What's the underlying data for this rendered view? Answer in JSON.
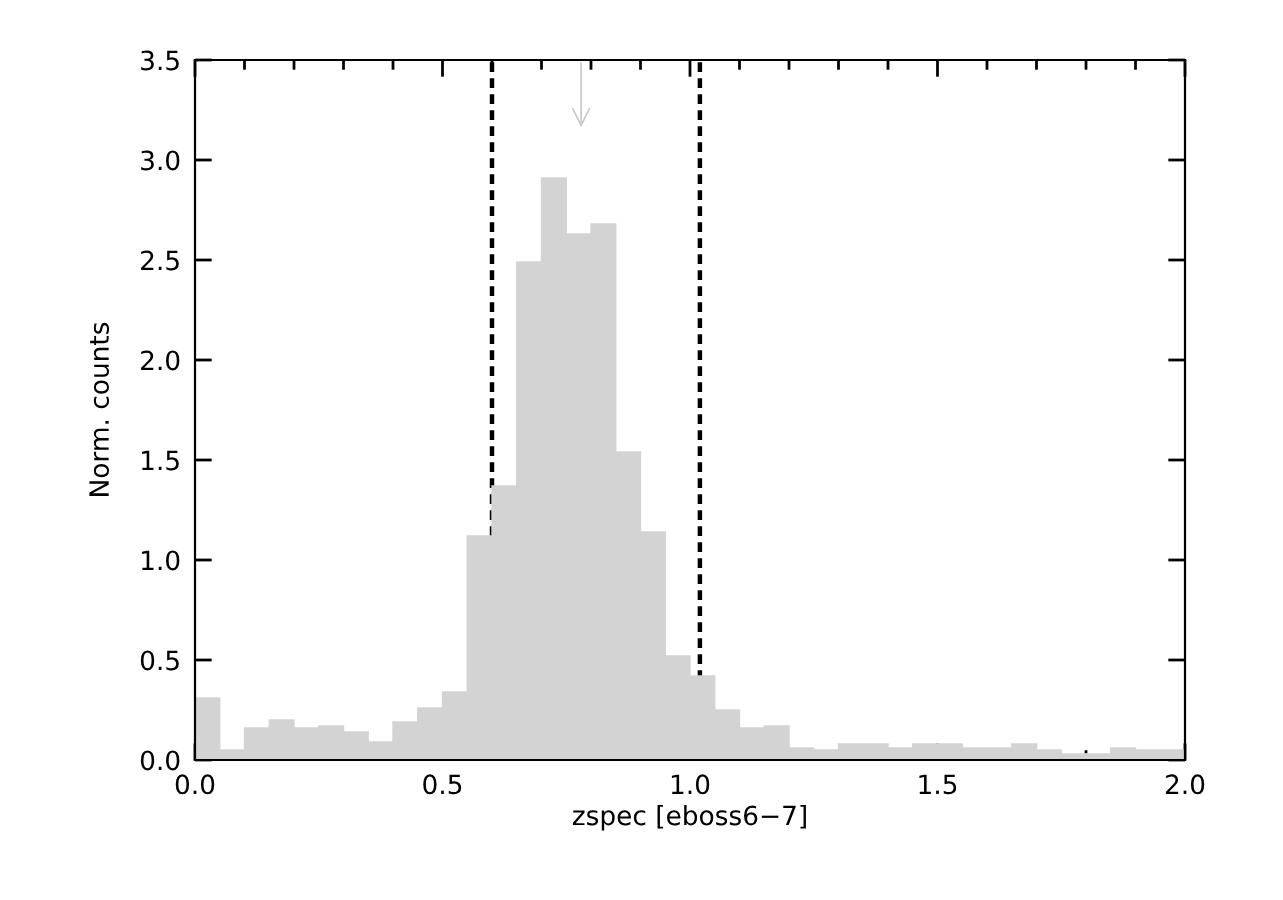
{
  "chart_data": {
    "type": "histogram",
    "xlabel": "zspec [eboss6−7]",
    "ylabel": "Norm. counts",
    "bins": [
      0,
      0.05,
      0.1,
      0.15,
      0.2,
      0.25,
      0.3,
      0.35,
      0.4,
      0.45,
      0.5,
      0.55,
      0.6,
      0.65,
      0.7,
      0.75,
      0.8,
      0.85,
      0.9,
      0.95,
      1.0,
      1.05,
      1.1,
      1.15,
      1.2,
      1.25,
      1.3,
      1.35,
      1.4,
      1.45,
      1.5,
      1.55,
      1.6,
      1.65,
      1.7,
      1.75,
      1.8,
      1.85,
      1.9,
      1.95,
      2.0
    ],
    "values": [
      0.31,
      0.05,
      0.16,
      0.2,
      0.16,
      0.17,
      0.14,
      0.09,
      0.19,
      0.26,
      0.34,
      1.12,
      1.37,
      2.49,
      2.91,
      2.63,
      2.68,
      1.54,
      1.14,
      0.52,
      0.42,
      0.25,
      0.16,
      0.17,
      0.06,
      0.05,
      0.08,
      0.08,
      0.06,
      0.08,
      0.08,
      0.06,
      0.06,
      0.08,
      0.05,
      0.03,
      0.03,
      0.06,
      0.05,
      0.05
    ],
    "color": "#d3d3d3",
    "xlim": [
      0,
      2.0
    ],
    "ylim": [
      0,
      3.5
    ],
    "xticks": [
      {
        "value": 0,
        "label": "0.0"
      },
      0.5,
      {
        "value": 1,
        "label": "1.0"
      },
      1.5,
      {
        "value": 2,
        "label": "2.0"
      }
    ],
    "yticks": [
      {
        "value": 0,
        "label": "0.0"
      },
      0.5,
      {
        "value": 1,
        "label": "1.0"
      },
      1.5,
      {
        "value": 2,
        "label": "2.0"
      },
      2.5,
      {
        "value": 3,
        "label": "3.0"
      },
      3.5
    ],
    "ref_lines": [
      {
        "axis": "x",
        "value": 0.6,
        "color": "#000000",
        "line_style": "dashed"
      },
      {
        "axis": "x",
        "value": 1.02,
        "color": "#000000",
        "line_style": "dashed"
      }
    ],
    "grid": false
  }
}
